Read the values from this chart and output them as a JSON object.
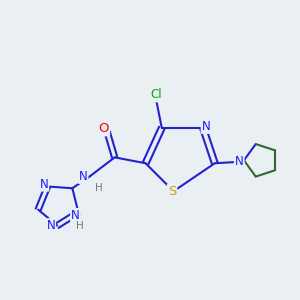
{
  "bg_color": "#eaeff3",
  "bond_color_default": "#2222cc",
  "bond_lw": 1.5,
  "atom_colors": {
    "N": "#1a1aff",
    "O": "#ff0000",
    "S": "#ccaa00",
    "Cl": "#00aa00",
    "H": "#777777",
    "C_bond": "#2d6b2d"
  },
  "font_size": 8.5,
  "xlim": [
    0,
    10
  ],
  "ylim": [
    0,
    10
  ]
}
